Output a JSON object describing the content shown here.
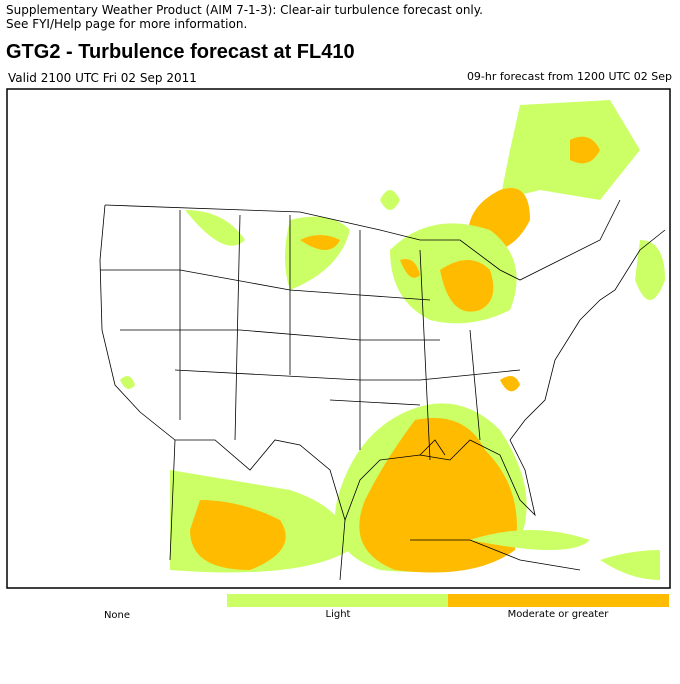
{
  "header": {
    "notice_lines": [
      "Supplementary Weather Product (AIM 7-1-3): Clear-air turbulence forecast only.",
      "See FYI/Help page for more information."
    ],
    "title": "GTG2 - Turbulence forecast at FL410",
    "valid": "Valid 2100 UTC Fri 02 Sep 2011",
    "forecast": "09-hr forecast from 1200 UTC 02 Sep"
  },
  "legend": {
    "items": [
      {
        "label": "None",
        "color": "#ffffff"
      },
      {
        "label": "Light",
        "color": "#ccff66"
      },
      {
        "label": "Moderate or greater",
        "color": "#ffbb00"
      }
    ]
  }
}
